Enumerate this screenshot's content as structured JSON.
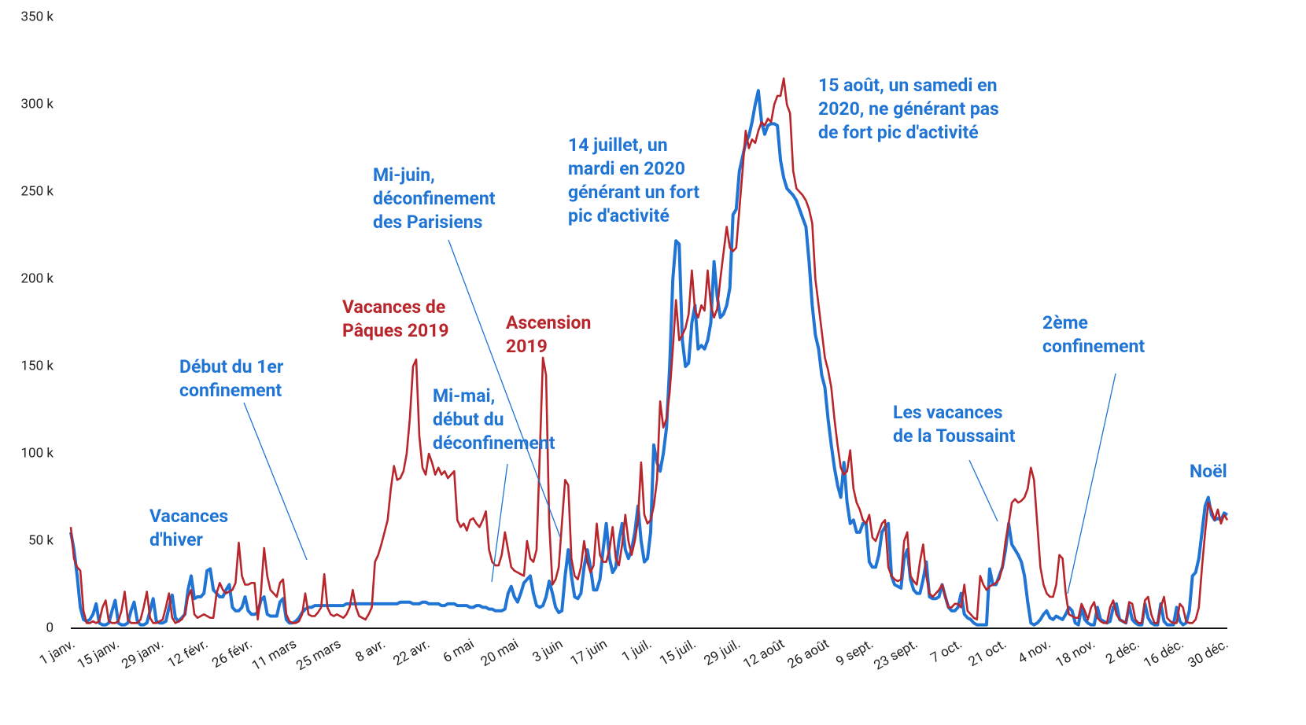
{
  "chart_data": {
    "type": "line",
    "categories": [
      "1 janv.",
      null,
      null,
      null,
      null,
      null,
      null,
      null,
      null,
      null,
      null,
      null,
      null,
      null,
      "15 janv.",
      null,
      null,
      null,
      null,
      null,
      null,
      null,
      null,
      null,
      null,
      null,
      null,
      null,
      "29 janv.",
      null,
      null,
      null,
      null,
      null,
      null,
      null,
      null,
      null,
      null,
      null,
      null,
      null,
      "12 févr.",
      null,
      null,
      null,
      null,
      null,
      null,
      null,
      null,
      null,
      null,
      null,
      null,
      null,
      "26 févr.",
      null,
      null,
      null,
      null,
      null,
      null,
      null,
      null,
      null,
      null,
      null,
      null,
      null,
      "11 mars",
      null,
      null,
      null,
      null,
      null,
      null,
      null,
      null,
      null,
      null,
      null,
      null,
      null,
      "25 mars",
      null,
      null,
      null,
      null,
      null,
      null,
      null,
      null,
      null,
      null,
      null,
      null,
      null,
      "8 avr.",
      null,
      null,
      null,
      null,
      null,
      null,
      null,
      null,
      null,
      null,
      null,
      null,
      null,
      "22 avr.",
      null,
      null,
      null,
      null,
      null,
      null,
      null,
      null,
      null,
      null,
      null,
      null,
      null,
      "6 mai",
      null,
      null,
      null,
      null,
      null,
      null,
      null,
      null,
      null,
      null,
      null,
      null,
      null,
      "20 mai",
      null,
      null,
      null,
      null,
      null,
      null,
      null,
      null,
      null,
      null,
      null,
      null,
      null,
      "3 juin",
      null,
      null,
      null,
      null,
      null,
      null,
      null,
      null,
      null,
      null,
      null,
      null,
      null,
      "17 juin",
      null,
      null,
      null,
      null,
      null,
      null,
      null,
      null,
      null,
      null,
      null,
      null,
      null,
      "1 juil.",
      null,
      null,
      null,
      null,
      null,
      null,
      null,
      null,
      null,
      null,
      null,
      null,
      null,
      "15 juil.",
      null,
      null,
      null,
      null,
      null,
      null,
      null,
      null,
      null,
      null,
      null,
      null,
      null,
      "29 juil.",
      null,
      null,
      null,
      null,
      null,
      null,
      null,
      null,
      null,
      null,
      null,
      null,
      null,
      "12 août",
      null,
      null,
      null,
      null,
      null,
      null,
      null,
      null,
      null,
      null,
      null,
      null,
      null,
      "26 août",
      null,
      null,
      null,
      null,
      null,
      null,
      null,
      null,
      null,
      null,
      null,
      null,
      null,
      "9 sept.",
      null,
      null,
      null,
      null,
      null,
      null,
      null,
      null,
      null,
      null,
      null,
      null,
      null,
      "23 sept.",
      null,
      null,
      null,
      null,
      null,
      null,
      null,
      null,
      null,
      null,
      null,
      null,
      null,
      "7 oct.",
      null,
      null,
      null,
      null,
      null,
      null,
      null,
      null,
      null,
      null,
      null,
      null,
      null,
      "21 oct.",
      null,
      null,
      null,
      null,
      null,
      null,
      null,
      null,
      null,
      null,
      null,
      null,
      null,
      "4 nov.",
      null,
      null,
      null,
      null,
      null,
      null,
      null,
      null,
      null,
      null,
      null,
      null,
      null,
      "18 nov.",
      null,
      null,
      null,
      null,
      null,
      null,
      null,
      null,
      null,
      null,
      null,
      null,
      null,
      "2 déc.",
      null,
      null,
      null,
      null,
      null,
      null,
      null,
      null,
      null,
      null,
      null,
      null,
      null,
      "16 déc.",
      null,
      null,
      null,
      null,
      null,
      null,
      null,
      null,
      null,
      null,
      null,
      null,
      null,
      "30 déc.",
      null
    ],
    "series": [
      {
        "color": "#1f74d4",
        "values": [
          55000,
          45000,
          30000,
          12000,
          5000,
          4000,
          5000,
          8000,
          14000,
          3000,
          2000,
          2000,
          3000,
          10000,
          16000,
          3000,
          2000,
          2000,
          3000,
          10000,
          15000,
          4000,
          2000,
          2000,
          3000,
          10000,
          17000,
          4000,
          3000,
          3000,
          4000,
          12000,
          19000,
          6000,
          4000,
          6000,
          8000,
          22000,
          30000,
          17000,
          18000,
          18000,
          20000,
          33000,
          34000,
          22000,
          20000,
          18000,
          18000,
          22000,
          25000,
          12000,
          10000,
          10000,
          12000,
          18000,
          10000,
          8000,
          8000,
          9000,
          16000,
          18000,
          8000,
          7000,
          7000,
          7000,
          15000,
          17000,
          5000,
          3000,
          3000,
          4000,
          6000,
          9000,
          11000,
          12000,
          12000,
          13000,
          13000,
          13000,
          13000,
          13000,
          13000,
          13000,
          13000,
          13000,
          13000,
          14000,
          14000,
          14000,
          14000,
          14000,
          14000,
          14000,
          14000,
          14000,
          14000,
          14000,
          14000,
          14000,
          14000,
          14000,
          14000,
          14000,
          15000,
          15000,
          15000,
          15000,
          14000,
          14000,
          14000,
          15000,
          15000,
          14000,
          14000,
          14000,
          14000,
          13000,
          13000,
          14000,
          14000,
          14000,
          13000,
          13000,
          13000,
          13000,
          12000,
          12000,
          13000,
          13000,
          12000,
          12000,
          11000,
          11000,
          10000,
          10000,
          10000,
          11000,
          20000,
          24000,
          18000,
          15000,
          20000,
          26000,
          28000,
          30000,
          20000,
          13000,
          12000,
          13000,
          18000,
          27000,
          20000,
          12000,
          9000,
          10000,
          30000,
          45000,
          30000,
          18000,
          17000,
          20000,
          35000,
          45000,
          35000,
          22000,
          22000,
          28000,
          45000,
          60000,
          40000,
          32000,
          35000,
          50000,
          60000,
          45000,
          40000,
          45000,
          55000,
          70000,
          50000,
          38000,
          40000,
          55000,
          105000,
          95000,
          90000,
          100000,
          115000,
          150000,
          200000,
          222000,
          220000,
          165000,
          150000,
          152000,
          175000,
          185000,
          160000,
          162000,
          160000,
          165000,
          175000,
          210000,
          190000,
          178000,
          180000,
          185000,
          195000,
          237000,
          240000,
          262000,
          270000,
          278000,
          282000,
          290000,
          300000,
          308000,
          290000,
          283000,
          288000,
          289000,
          289000,
          288000,
          268000,
          258000,
          252000,
          250000,
          248000,
          245000,
          240000,
          235000,
          230000,
          210000,
          185000,
          168000,
          160000,
          145000,
          138000,
          120000,
          105000,
          92000,
          82000,
          75000,
          95000,
          72000,
          60000,
          62000,
          55000,
          55000,
          60000,
          60000,
          38000,
          35000,
          35000,
          42000,
          55000,
          58000,
          60000,
          30000,
          25000,
          24000,
          23000,
          40000,
          45000,
          28000,
          22000,
          20000,
          20000,
          28000,
          38000,
          18000,
          17000,
          17000,
          18000,
          25000,
          18000,
          12000,
          10000,
          10000,
          12000,
          20000,
          8000,
          6000,
          5000,
          3000,
          2000,
          2000,
          2000,
          2000,
          34000,
          25000,
          25000,
          30000,
          35000,
          45000,
          60000,
          48000,
          45000,
          42000,
          38000,
          30000,
          15000,
          3000,
          2000,
          3000,
          5000,
          8000,
          10000,
          6000,
          5000,
          7000,
          6000,
          5000,
          8000,
          12000,
          10000,
          3000,
          2000,
          12000,
          5000,
          3000,
          2000,
          2000,
          12000,
          5000,
          4000,
          3000,
          4000,
          12000,
          14000,
          5000,
          4000,
          3000,
          13000,
          5000,
          3000,
          2000,
          2000,
          14000,
          6000,
          3000,
          2000,
          2000,
          14000,
          4000,
          2000,
          2000,
          2000,
          12000,
          4000,
          2000,
          3000,
          10000,
          30000,
          32000,
          40000,
          55000,
          70000,
          75000,
          65000,
          62000,
          63000,
          62000,
          66000,
          65000
        ]
      },
      {
        "color": "#b8262b",
        "values": [
          58000,
          40000,
          35000,
          33000,
          10000,
          3000,
          3000,
          4000,
          3000,
          4000,
          12000,
          16000,
          4000,
          3000,
          3000,
          4000,
          10000,
          21000,
          5000,
          3000,
          3000,
          3000,
          5000,
          12000,
          21000,
          6000,
          3000,
          3000,
          4000,
          5000,
          12000,
          20000,
          6000,
          3000,
          4000,
          5000,
          8000,
          18000,
          22000,
          8000,
          6000,
          7000,
          8000,
          7000,
          6000,
          6000,
          20000,
          26000,
          22000,
          20000,
          21000,
          22000,
          26000,
          49000,
          30000,
          25000,
          25000,
          26000,
          26000,
          5000,
          20000,
          46000,
          30000,
          22000,
          20000,
          18000,
          26000,
          28000,
          8000,
          4000,
          3000,
          3000,
          4000,
          8000,
          20000,
          8000,
          7000,
          7000,
          9000,
          12000,
          31000,
          12000,
          8000,
          7000,
          8000,
          7000,
          6000,
          8000,
          12000,
          22000,
          12000,
          7000,
          6000,
          5000,
          8000,
          12000,
          38000,
          42000,
          48000,
          55000,
          62000,
          80000,
          93000,
          85000,
          86000,
          90000,
          100000,
          120000,
          150000,
          154000,
          110000,
          92000,
          88000,
          100000,
          95000,
          88000,
          92000,
          88000,
          90000,
          86000,
          88000,
          90000,
          62000,
          58000,
          60000,
          56000,
          62000,
          63000,
          60000,
          58000,
          62000,
          67000,
          45000,
          38000,
          36000,
          36000,
          42000,
          55000,
          45000,
          35000,
          33000,
          32000,
          31000,
          30000,
          50000,
          40000,
          38000,
          45000,
          100000,
          155000,
          145000,
          60000,
          25000,
          28000,
          35000,
          60000,
          85000,
          82000,
          40000,
          30000,
          28000,
          35000,
          50000,
          38000,
          32000,
          36000,
          60000,
          42000,
          38000,
          38000,
          45000,
          58000,
          40000,
          36000,
          48000,
          65000,
          50000,
          42000,
          50000,
          62000,
          95000,
          65000,
          60000,
          62000,
          70000,
          85000,
          130000,
          115000,
          120000,
          135000,
          160000,
          188000,
          165000,
          168000,
          172000,
          180000,
          205000,
          182000,
          178000,
          185000,
          182000,
          205000,
          185000,
          178000,
          183000,
          200000,
          215000,
          230000,
          218000,
          216000,
          218000,
          240000,
          262000,
          285000,
          275000,
          280000,
          278000,
          285000,
          290000,
          288000,
          292000,
          290000,
          300000,
          305000,
          305000,
          315000,
          300000,
          295000,
          262000,
          252000,
          250000,
          248000,
          245000,
          240000,
          232000,
          200000,
          185000,
          170000,
          155000,
          148000,
          138000,
          120000,
          105000,
          92000,
          88000,
          90000,
          102000,
          80000,
          72000,
          68000,
          62000,
          60000,
          65000,
          52000,
          50000,
          55000,
          60000,
          62000,
          35000,
          30000,
          28000,
          27000,
          28000,
          50000,
          55000,
          30000,
          27000,
          25000,
          38000,
          48000,
          30000,
          20000,
          18000,
          20000,
          22000,
          25000,
          18000,
          12000,
          12000,
          14000,
          14000,
          12000,
          25000,
          10000,
          8000,
          6000,
          5000,
          30000,
          25000,
          22000,
          24000,
          25000,
          26000,
          28000,
          35000,
          50000,
          60000,
          72000,
          74000,
          72000,
          73000,
          75000,
          80000,
          92000,
          85000,
          60000,
          35000,
          25000,
          20000,
          18000,
          18000,
          25000,
          42000,
          40000,
          20000,
          8000,
          7000,
          6000,
          6000,
          14000,
          10000,
          5000,
          12000,
          15000,
          6000,
          4000,
          3000,
          3000,
          12000,
          16000,
          8000,
          5000,
          4000,
          3000,
          15000,
          14000,
          5000,
          3000,
          3000,
          16000,
          18000,
          8000,
          3000,
          3000,
          12000,
          18000,
          6000,
          4000,
          3000,
          3000,
          14000,
          12000,
          4000,
          3000,
          3000,
          5000,
          12000,
          35000,
          55000,
          72000,
          68000,
          62000,
          68000,
          60000,
          65000,
          62000
        ]
      }
    ],
    "ylim": [
      0,
      350000
    ],
    "yticks": [
      {
        "value": 0,
        "label": "0"
      },
      {
        "value": 50000,
        "label": "50 k"
      },
      {
        "value": 100000,
        "label": "100 k"
      },
      {
        "value": 150000,
        "label": "150 k"
      },
      {
        "value": 200000,
        "label": "200 k"
      },
      {
        "value": 250000,
        "label": "250 k"
      },
      {
        "value": 300000,
        "label": "300 k"
      },
      {
        "value": 350000,
        "label": "350 k"
      }
    ],
    "grid": false,
    "annotations": [
      {
        "lines": [
          "Vacances",
          "d'hiver"
        ],
        "color": "#1f74d4"
      },
      {
        "lines": [
          "Début du 1er",
          "confinement"
        ],
        "color": "#1f74d4"
      },
      {
        "lines": [
          "Vacances de",
          "Pâques 2019"
        ],
        "color": "#b8262b"
      },
      {
        "lines": [
          "Mi-mai,",
          "début du",
          "déconfinement"
        ],
        "color": "#1f74d4"
      },
      {
        "lines": [
          "Mi-juin,",
          "déconfinement",
          "des Parisiens"
        ],
        "color": "#1f74d4"
      },
      {
        "lines": [
          "Ascension",
          "2019"
        ],
        "color": "#b8262b"
      },
      {
        "lines": [
          "14 juillet, un",
          "mardi en 2020",
          "générant un fort",
          "pic d'activité"
        ],
        "color": "#1f74d4"
      },
      {
        "lines": [
          "15 août, un samedi en",
          "2020, ne générant pas",
          "de fort pic d'activité"
        ],
        "color": "#1f74d4"
      },
      {
        "lines": [
          "Les vacances",
          "de la Toussaint"
        ],
        "color": "#1f74d4"
      },
      {
        "lines": [
          "2ème",
          "confinement"
        ],
        "color": "#1f74d4"
      },
      {
        "lines": [
          "Noël"
        ],
        "color": "#1f74d4"
      }
    ]
  }
}
